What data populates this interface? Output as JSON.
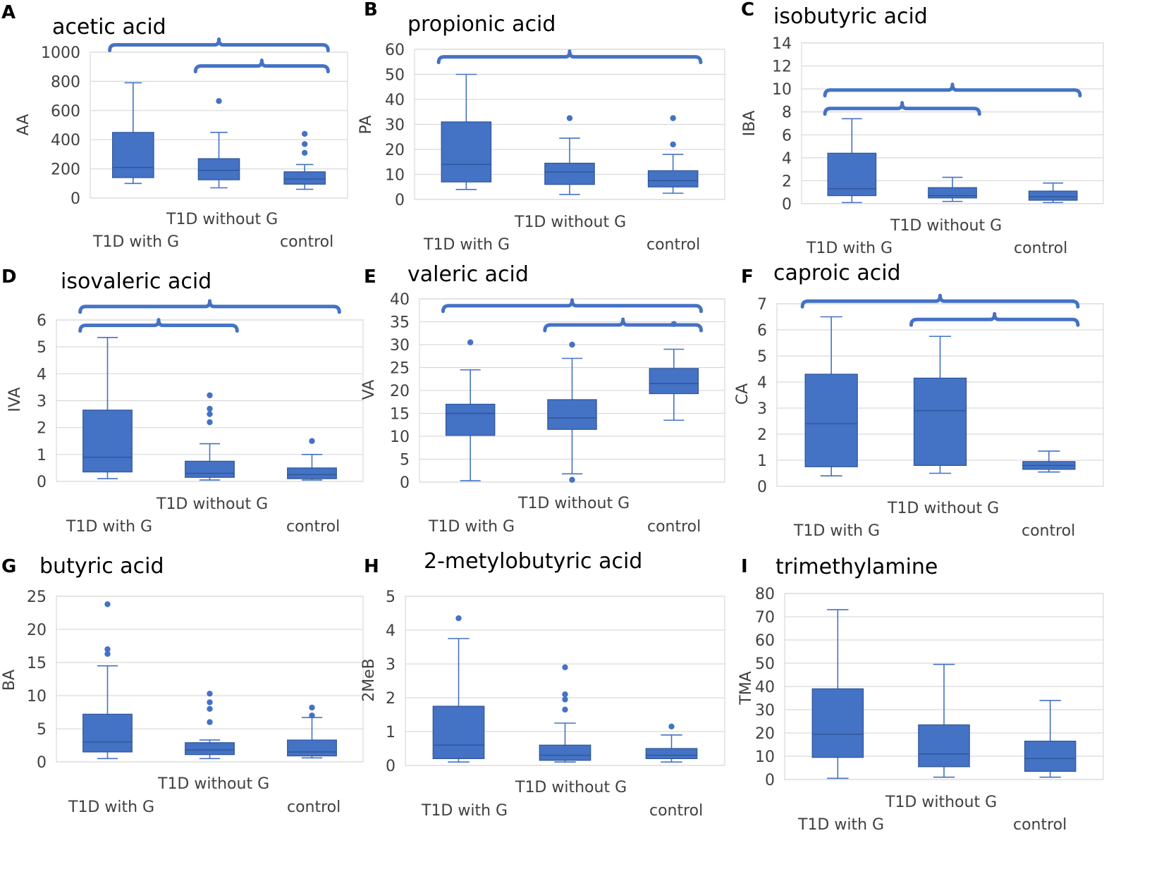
{
  "colors": {
    "box": "#4472c4",
    "box_edge": "#2f5597",
    "median": "#2f5597",
    "bracket": "#4472c4"
  },
  "chart_data": [
    {
      "type": "box",
      "letter": "A",
      "title": "acetic acid",
      "ylabel": "AA",
      "ylim": [
        0,
        1000
      ],
      "yticks": [
        "0",
        "200",
        "400",
        "600",
        "800",
        "1000"
      ],
      "ytick_values": [
        0,
        200,
        400,
        600,
        800,
        1000
      ],
      "categories": [
        "T1D with G",
        "T1D without G",
        "control"
      ],
      "boxes": [
        {
          "min": 100,
          "q1": 140,
          "median": 210,
          "q3": 450,
          "max": 790,
          "outliers": []
        },
        {
          "min": 70,
          "q1": 125,
          "median": 190,
          "q3": 270,
          "max": 450,
          "outliers": [
            665
          ]
        },
        {
          "min": 60,
          "q1": 95,
          "median": 130,
          "q3": 180,
          "max": 230,
          "outliers": [
            310,
            370,
            440
          ]
        }
      ],
      "brackets": [
        {
          "from": 0,
          "to": 2,
          "y": 1050
        },
        {
          "from": 1,
          "to": 2,
          "y": 905
        }
      ]
    },
    {
      "type": "box",
      "letter": "B",
      "title": "propionic acid",
      "ylabel": "PA",
      "ylim": [
        0,
        60
      ],
      "yticks": [
        "0",
        "10",
        "20",
        "30",
        "40",
        "50",
        "60"
      ],
      "ytick_values": [
        0,
        10,
        20,
        30,
        40,
        50,
        60
      ],
      "categories": [
        "T1D with G",
        "T1D without G",
        "control"
      ],
      "boxes": [
        {
          "min": 4,
          "q1": 7,
          "median": 14,
          "q3": 31,
          "max": 50,
          "outliers": []
        },
        {
          "min": 2,
          "q1": 6,
          "median": 11,
          "q3": 14.5,
          "max": 24.5,
          "outliers": [
            32.5
          ]
        },
        {
          "min": 2.5,
          "q1": 5,
          "median": 7.5,
          "q3": 11.5,
          "max": 18,
          "outliers": [
            22,
            32.5
          ]
        }
      ],
      "brackets": [
        {
          "from": 0,
          "to": 2,
          "y": 57
        }
      ]
    },
    {
      "type": "box",
      "letter": "C",
      "title": "isobutyric acid",
      "ylabel": "IBA",
      "ylim": [
        0,
        14
      ],
      "yticks": [
        "0",
        "2",
        "4",
        "6",
        "8",
        "10",
        "12",
        "14"
      ],
      "ytick_values": [
        0,
        2,
        4,
        6,
        8,
        10,
        12,
        14
      ],
      "categories": [
        "T1D with G",
        "T1D without G",
        "control"
      ],
      "boxes": [
        {
          "min": 0.1,
          "q1": 0.7,
          "median": 1.3,
          "q3": 4.4,
          "max": 7.4,
          "outliers": []
        },
        {
          "min": 0.2,
          "q1": 0.5,
          "median": 0.7,
          "q3": 1.4,
          "max": 2.3,
          "outliers": []
        },
        {
          "min": 0.1,
          "q1": 0.3,
          "median": 0.6,
          "q3": 1.1,
          "max": 1.8,
          "outliers": []
        }
      ],
      "brackets": [
        {
          "from": 0,
          "to": 2,
          "y": 9.9
        },
        {
          "from": 0,
          "to": 1,
          "y": 8.3
        }
      ]
    },
    {
      "type": "box",
      "letter": "D",
      "title": "isovaleric acid",
      "ylabel": "IVA",
      "ylim": [
        0,
        6
      ],
      "yticks": [
        "0",
        "1",
        "2",
        "3",
        "4",
        "5",
        "6"
      ],
      "ytick_values": [
        0,
        1,
        2,
        3,
        4,
        5,
        6
      ],
      "categories": [
        "T1D with G",
        "T1D without G",
        "control"
      ],
      "boxes": [
        {
          "min": 0.1,
          "q1": 0.35,
          "median": 0.9,
          "q3": 2.65,
          "max": 5.35,
          "outliers": []
        },
        {
          "min": 0.05,
          "q1": 0.15,
          "median": 0.3,
          "q3": 0.75,
          "max": 1.4,
          "outliers": [
            2.2,
            2.5,
            2.7,
            3.2
          ]
        },
        {
          "min": 0.05,
          "q1": 0.1,
          "median": 0.25,
          "q3": 0.5,
          "max": 1.0,
          "outliers": [
            1.5
          ]
        }
      ],
      "brackets": [
        {
          "from": 0,
          "to": 2,
          "y": 6.5
        },
        {
          "from": 0,
          "to": 1,
          "y": 5.8
        }
      ]
    },
    {
      "type": "box",
      "letter": "E",
      "title": "valeric acid",
      "ylabel": "VA",
      "ylim": [
        0,
        40
      ],
      "yticks": [
        "0",
        "5",
        "10",
        "15",
        "20",
        "25",
        "30",
        "35",
        "40"
      ],
      "ytick_values": [
        0,
        5,
        10,
        15,
        20,
        25,
        30,
        35,
        40
      ],
      "categories": [
        "T1D with G",
        "T1D without G",
        "control"
      ],
      "boxes": [
        {
          "min": 0.3,
          "q1": 10.2,
          "median": 15,
          "q3": 17,
          "max": 24.5,
          "outliers": [
            30.5
          ]
        },
        {
          "min": 1.8,
          "q1": 11.5,
          "median": 14,
          "q3": 18,
          "max": 27,
          "outliers": [
            0.5,
            30
          ]
        },
        {
          "min": 13.5,
          "q1": 19.3,
          "median": 21.5,
          "q3": 24.8,
          "max": 29,
          "outliers": [
            34.5
          ]
        }
      ],
      "brackets": [
        {
          "from": 0,
          "to": 2,
          "y": 38.5
        },
        {
          "from": 1,
          "to": 2,
          "y": 34.3
        }
      ]
    },
    {
      "type": "box",
      "letter": "F",
      "title": "caproic acid",
      "ylabel": "CA",
      "ylim": [
        0,
        7
      ],
      "yticks": [
        "0",
        "1",
        "2",
        "3",
        "4",
        "5",
        "6",
        "7"
      ],
      "ytick_values": [
        0,
        1,
        2,
        3,
        4,
        5,
        6,
        7
      ],
      "categories": [
        "T1D with G",
        "T1D without G",
        "control"
      ],
      "boxes": [
        {
          "min": 0.4,
          "q1": 0.75,
          "median": 2.4,
          "q3": 4.3,
          "max": 6.5,
          "outliers": []
        },
        {
          "min": 0.5,
          "q1": 0.8,
          "median": 2.9,
          "q3": 4.15,
          "max": 5.75,
          "outliers": []
        },
        {
          "min": 0.55,
          "q1": 0.65,
          "median": 0.8,
          "q3": 0.95,
          "max": 1.35,
          "outliers": []
        }
      ],
      "brackets": [
        {
          "from": 0,
          "to": 2,
          "y": 7.1
        },
        {
          "from": 1,
          "to": 2,
          "y": 6.4
        }
      ]
    },
    {
      "type": "box",
      "letter": "G",
      "title": "butyric acid",
      "ylabel": "BA",
      "ylim": [
        0,
        25
      ],
      "yticks": [
        "0",
        "5",
        "10",
        "15",
        "20",
        "25"
      ],
      "ytick_values": [
        0,
        5,
        10,
        15,
        20,
        25
      ],
      "categories": [
        "T1D with G",
        "T1D without G",
        "control"
      ],
      "boxes": [
        {
          "min": 0.5,
          "q1": 1.5,
          "median": 3,
          "q3": 7.2,
          "max": 14.5,
          "outliers": [
            16.3,
            17,
            23.8
          ]
        },
        {
          "min": 0.5,
          "q1": 1.1,
          "median": 1.8,
          "q3": 2.9,
          "max": 3.3,
          "outliers": [
            6,
            8,
            9,
            10.3
          ]
        },
        {
          "min": 0.6,
          "q1": 0.9,
          "median": 1.5,
          "q3": 3.3,
          "max": 6.7,
          "outliers": [
            7,
            8.2
          ]
        }
      ],
      "brackets": []
    },
    {
      "type": "box",
      "letter": "H",
      "title": "2-metylobutyric acid",
      "ylabel": "2MeB",
      "ylim": [
        0,
        5
      ],
      "yticks": [
        "0",
        "1",
        "2",
        "3",
        "4",
        "5"
      ],
      "ytick_values": [
        0,
        1,
        2,
        3,
        4,
        5
      ],
      "categories": [
        "T1D with G",
        "T1D without G",
        "control"
      ],
      "boxes": [
        {
          "min": 0.1,
          "q1": 0.2,
          "median": 0.6,
          "q3": 1.75,
          "max": 3.75,
          "outliers": [
            4.35
          ]
        },
        {
          "min": 0.1,
          "q1": 0.15,
          "median": 0.3,
          "q3": 0.6,
          "max": 1.25,
          "outliers": [
            1.65,
            1.95,
            2.1,
            2.9
          ]
        },
        {
          "min": 0.1,
          "q1": 0.2,
          "median": 0.3,
          "q3": 0.5,
          "max": 0.9,
          "outliers": [
            1.15
          ]
        }
      ],
      "brackets": []
    },
    {
      "type": "box",
      "letter": "I",
      "title": "trimethylamine",
      "ylabel": "TMA",
      "ylim": [
        0,
        80
      ],
      "yticks": [
        "0",
        "10",
        "20",
        "30",
        "40",
        "50",
        "60",
        "70",
        "80"
      ],
      "ytick_values": [
        0,
        10,
        20,
        30,
        40,
        50,
        60,
        70,
        80
      ],
      "categories": [
        "T1D with G",
        "T1D without G",
        "control"
      ],
      "boxes": [
        {
          "min": 0.5,
          "q1": 9.5,
          "median": 19.5,
          "q3": 39,
          "max": 73,
          "outliers": []
        },
        {
          "min": 1,
          "q1": 5.5,
          "median": 11,
          "q3": 23.5,
          "max": 49.5,
          "outliers": []
        },
        {
          "min": 1,
          "q1": 3.5,
          "median": 9,
          "q3": 16.5,
          "max": 34,
          "outliers": []
        }
      ],
      "brackets": []
    }
  ]
}
